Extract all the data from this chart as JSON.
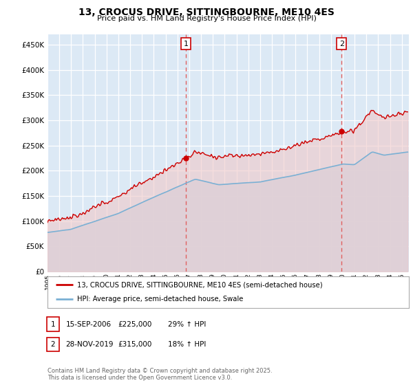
{
  "title": "13, CROCUS DRIVE, SITTINGBOURNE, ME10 4ES",
  "subtitle": "Price paid vs. HM Land Registry's House Price Index (HPI)",
  "bg_color": "#ffffff",
  "plot_bg_color": "#dce9f5",
  "grid_color": "#ffffff",
  "red_color": "#cc0000",
  "blue_color": "#7ab0d4",
  "blue_fill": "#c5dcee",
  "red_fill": "#e8b0b0",
  "dashed_color": "#e06060",
  "ylim": [
    0,
    470000
  ],
  "yticks": [
    0,
    50000,
    100000,
    150000,
    200000,
    250000,
    300000,
    350000,
    400000,
    450000
  ],
  "year_start": 1995,
  "year_end": 2025,
  "purchase1": {
    "date": "15-SEP-2006",
    "price": 225000,
    "hpi_pct": "29%",
    "direction": "↑",
    "label": "1",
    "year": 2006.71
  },
  "purchase2": {
    "date": "28-NOV-2019",
    "price": 315000,
    "hpi_pct": "18%",
    "direction": "↑",
    "label": "2",
    "year": 2019.9
  },
  "legend_line1": "13, CROCUS DRIVE, SITTINGBOURNE, ME10 4ES (semi-detached house)",
  "legend_line2": "HPI: Average price, semi-detached house, Swale",
  "footer": "Contains HM Land Registry data © Crown copyright and database right 2025.\nThis data is licensed under the Open Government Licence v3.0."
}
